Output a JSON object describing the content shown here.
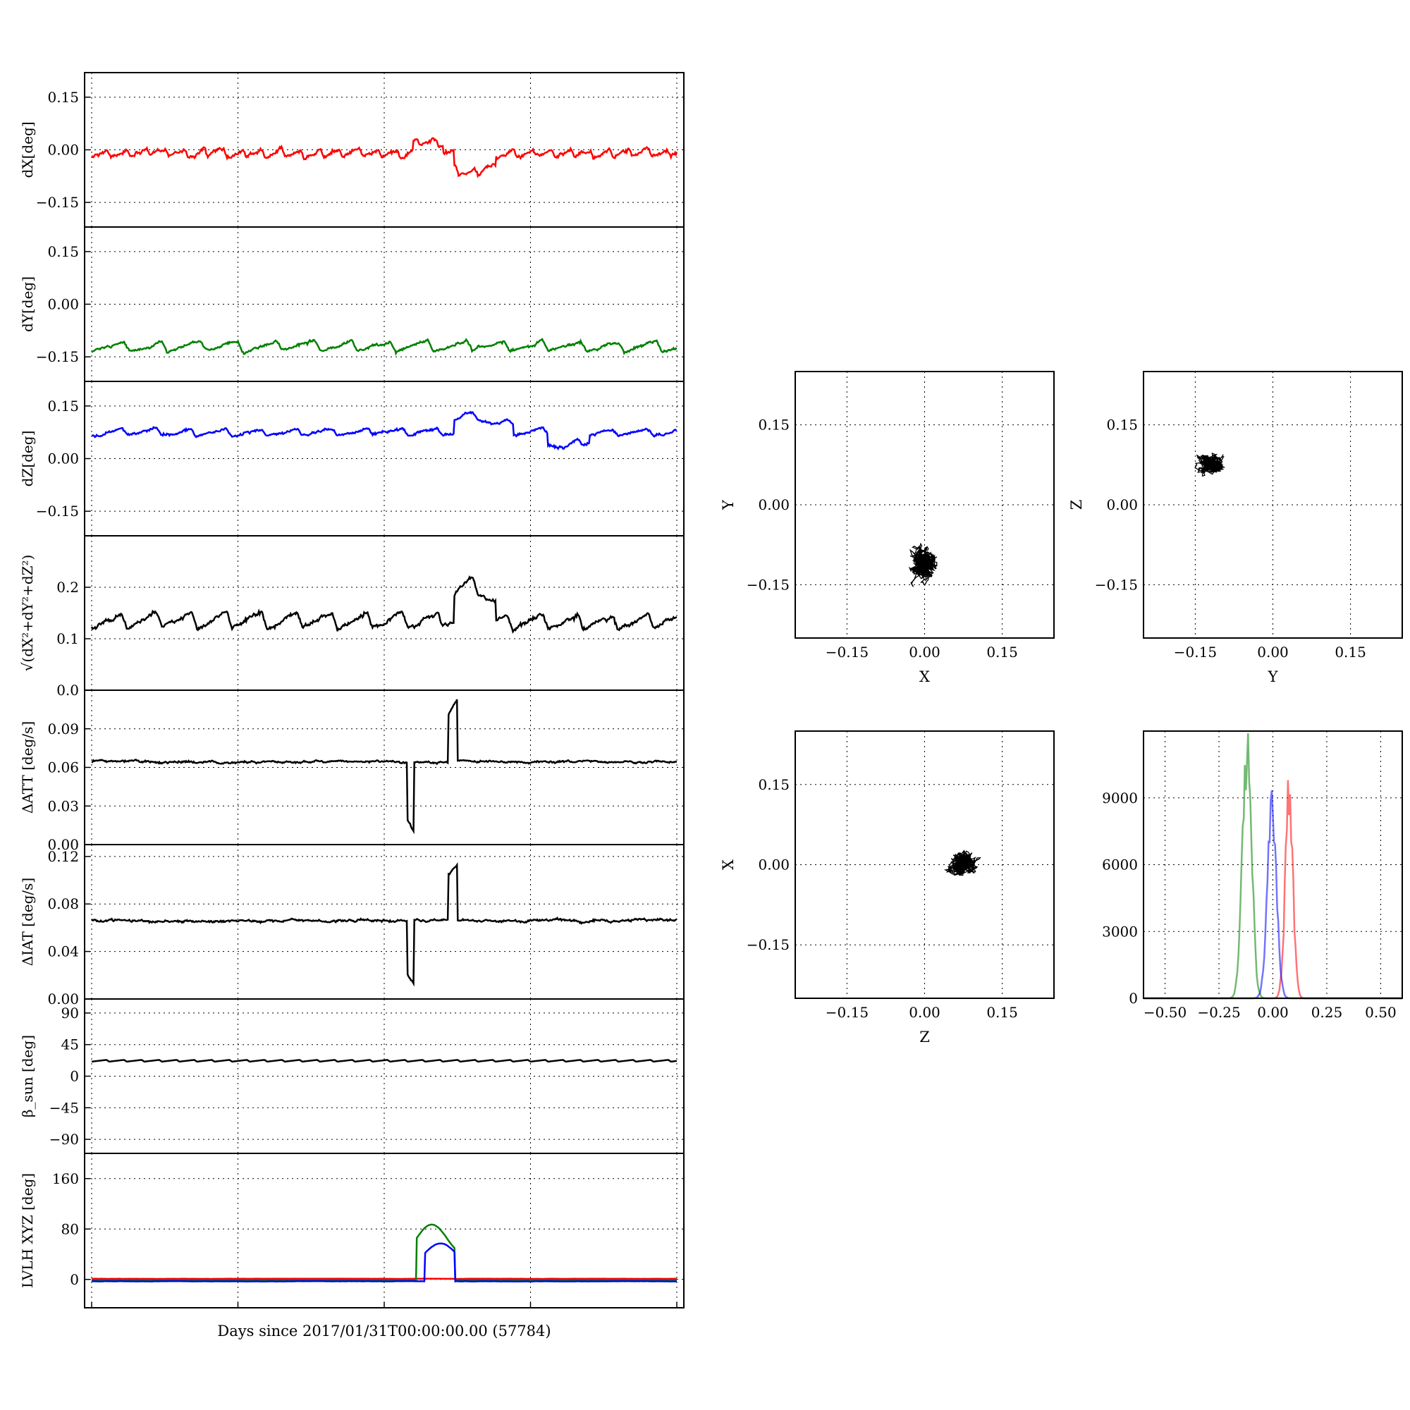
{
  "figure": {
    "xlabel": "Days since 2017/01/31T00:00:00.00 (57784)"
  },
  "chart_data": [
    {
      "id": "dx",
      "type": "line",
      "ylabel": "dX[deg]",
      "ylim": [
        -0.22,
        0.22
      ],
      "yticks": [
        "0.15",
        "0.00",
        "−0.15"
      ],
      "ytick_values": [
        0.15,
        0,
        -0.15
      ],
      "xlim": [
        0,
        1
      ],
      "grid": true,
      "series": [
        {
          "color": "#ff0000",
          "base": -0.01,
          "amp": 0.022,
          "noise": 0.008,
          "period": 0.033,
          "events": [
            [
              0.62,
              0.69,
              -0.06
            ],
            [
              0.55,
              0.6,
              0.03
            ]
          ]
        }
      ]
    },
    {
      "id": "dy",
      "type": "line",
      "ylabel": "dY[deg]",
      "ylim": [
        -0.22,
        0.22
      ],
      "yticks": [
        "0.15",
        "0.00",
        "−0.15"
      ],
      "ytick_values": [
        0.15,
        0,
        -0.15
      ],
      "xlim": [
        0,
        1
      ],
      "grid": true,
      "series": [
        {
          "color": "#008000",
          "base": -0.12,
          "amp": 0.03,
          "noise": 0.006,
          "period": 0.065,
          "events": []
        }
      ]
    },
    {
      "id": "dz",
      "type": "line",
      "ylabel": "dZ[deg]",
      "ylim": [
        -0.22,
        0.22
      ],
      "yticks": [
        "0.15",
        "0.00",
        "−0.15"
      ],
      "ytick_values": [
        0.15,
        0,
        -0.15
      ],
      "xlim": [
        0,
        1
      ],
      "grid": true,
      "series": [
        {
          "color": "#0000ff",
          "base": 0.075,
          "amp": 0.02,
          "noise": 0.006,
          "period": 0.06,
          "events": [
            [
              0.62,
              0.72,
              0.05
            ],
            [
              0.78,
              0.85,
              -0.04
            ]
          ]
        }
      ]
    },
    {
      "id": "dr",
      "type": "line",
      "ylabel": "√(dX²+dY²+dZ²)",
      "ylim": [
        0,
        0.3
      ],
      "yticks": [
        "0.2",
        "0.1",
        "0.0"
      ],
      "ytick_values": [
        0.2,
        0.1,
        0
      ],
      "xlim": [
        0,
        1
      ],
      "grid": true,
      "series": [
        {
          "color": "#000000",
          "base": 0.135,
          "amp": 0.03,
          "noise": 0.006,
          "period": 0.06,
          "events": [
            [
              0.62,
              0.69,
              0.07
            ]
          ]
        }
      ]
    },
    {
      "id": "datt",
      "type": "line",
      "ylabel": "ΔATT [deg/s]",
      "ylim": [
        0,
        0.12
      ],
      "yticks": [
        "0.09",
        "0.06",
        "0.03",
        "0.00"
      ],
      "ytick_values": [
        0.09,
        0.06,
        0.03,
        0
      ],
      "xlim": [
        0,
        1
      ],
      "grid": true,
      "series": [
        {
          "color": "#000000",
          "base": 0.0645,
          "amp": 0.0,
          "noise": 0.0012,
          "period": 0.05,
          "events": [
            [
              0.54,
              0.55,
              -0.06
            ],
            [
              0.61,
              0.625,
              0.05
            ]
          ]
        }
      ]
    },
    {
      "id": "diat",
      "type": "line",
      "ylabel": "ΔIAT [deg/s]",
      "ylim": [
        0,
        0.13
      ],
      "yticks": [
        "0.12",
        "0.08",
        "0.04",
        "0.00"
      ],
      "ytick_values": [
        0.12,
        0.08,
        0.04,
        0
      ],
      "xlim": [
        0,
        1
      ],
      "grid": true,
      "series": [
        {
          "color": "#000000",
          "base": 0.066,
          "amp": 0.0,
          "noise": 0.0015,
          "period": 0.05,
          "events": [
            [
              0.54,
              0.55,
              -0.06
            ],
            [
              0.61,
              0.625,
              0.05
            ]
          ]
        }
      ]
    },
    {
      "id": "beta",
      "type": "line",
      "ylabel": "β_sun [deg]",
      "ylim": [
        -110,
        110
      ],
      "yticks": [
        "90",
        "45",
        "0",
        "−45",
        "−90"
      ],
      "ytick_values": [
        90,
        45,
        0,
        -45,
        -90
      ],
      "xlim": [
        0,
        1
      ],
      "grid": true,
      "series": [
        {
          "color": "#000000",
          "base": 22,
          "amp": 2.5,
          "noise": 0,
          "period": 0.03,
          "events": []
        }
      ]
    },
    {
      "id": "lvlh",
      "type": "line",
      "ylabel": "LVLH XYZ [deg]",
      "ylim": [
        -45,
        200
      ],
      "yticks": [
        "160",
        "80",
        "0"
      ],
      "ytick_values": [
        160,
        80,
        0
      ],
      "xlim": [
        0,
        1
      ],
      "grid": true,
      "series": [
        {
          "color": "#ff0000",
          "base": 1,
          "amp": 0,
          "noise": 0.2,
          "period": 0.05,
          "events": []
        },
        {
          "color": "#008000",
          "base": -1,
          "amp": 0,
          "noise": 0.2,
          "period": 0.05,
          "events": [
            [
              0.555,
              0.62,
              88
            ]
          ]
        },
        {
          "color": "#0000ff",
          "base": -3,
          "amp": 0,
          "noise": 0.3,
          "period": 0.05,
          "events": [
            [
              0.57,
              0.62,
              60
            ]
          ]
        }
      ]
    },
    {
      "id": "xy",
      "type": "scatter",
      "xlabel": "X",
      "ylabel": "Y",
      "xlim": [
        -0.25,
        0.25
      ],
      "ylim": [
        -0.25,
        0.25
      ],
      "ticks": [
        "−0.15",
        "0.00",
        "0.15"
      ],
      "tick_values": [
        -0.15,
        0,
        0.15
      ],
      "grid": true,
      "center": [
        0.0,
        -0.11
      ],
      "spread": [
        0.04,
        0.04
      ]
    },
    {
      "id": "yz",
      "type": "scatter",
      "xlabel": "Y",
      "ylabel": "Z",
      "xlim": [
        -0.25,
        0.25
      ],
      "ylim": [
        -0.25,
        0.25
      ],
      "ticks": [
        "−0.15",
        "0.00",
        "0.15"
      ],
      "tick_values": [
        -0.15,
        0,
        0.15
      ],
      "grid": true,
      "center": [
        -0.12,
        0.075
      ],
      "spread": [
        0.035,
        0.025
      ]
    },
    {
      "id": "zx",
      "type": "scatter",
      "xlabel": "Z",
      "ylabel": "X",
      "xlim": [
        -0.25,
        0.25
      ],
      "ylim": [
        -0.25,
        0.25
      ],
      "ticks": [
        "−0.15",
        "0.00",
        "0.15"
      ],
      "tick_values": [
        -0.15,
        0,
        0.15
      ],
      "grid": true,
      "center": [
        0.07,
        0.0
      ],
      "spread": [
        0.035,
        0.03
      ]
    },
    {
      "id": "hist",
      "type": "line",
      "xlim": [
        -0.6,
        0.6
      ],
      "ylim": [
        0,
        12000
      ],
      "xticks": [
        "−0.50",
        "−0.25",
        "0.00",
        "0.25",
        "0.50"
      ],
      "xtick_values": [
        -0.5,
        -0.25,
        0,
        0.25,
        0.5
      ],
      "yticks": [
        "9000",
        "6000",
        "3000",
        "0"
      ],
      "ytick_values": [
        9000,
        6000,
        3000,
        0
      ],
      "grid": true,
      "series": [
        {
          "color": "#ff0000",
          "center": 0.075,
          "width": 0.025,
          "peak": 9200
        },
        {
          "color": "#008000",
          "center": -0.12,
          "width": 0.03,
          "peak": 11200
        },
        {
          "color": "#0000ff",
          "center": -0.005,
          "width": 0.03,
          "peak": 8400
        }
      ]
    }
  ]
}
